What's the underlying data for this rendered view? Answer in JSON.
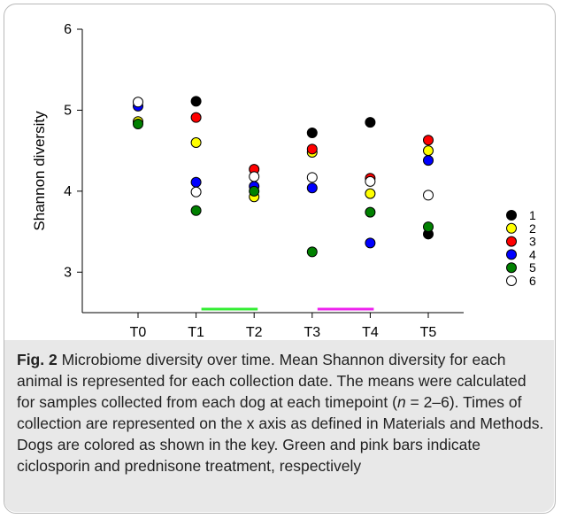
{
  "chart_data": {
    "type": "scatter",
    "ylabel": "Shannon diversity",
    "xlabel": "",
    "categories": [
      "T0",
      "T1",
      "T2",
      "T3",
      "T4",
      "T5"
    ],
    "ylim": [
      2.5,
      6
    ],
    "yticks": [
      3,
      4,
      5,
      6
    ],
    "grid": false,
    "legend_position": "right",
    "series": [
      {
        "name": "1",
        "color": "#000000",
        "values": [
          null,
          5.11,
          null,
          4.72,
          4.85,
          3.47
        ]
      },
      {
        "name": "2",
        "color": "#ffff00",
        "values": [
          4.86,
          4.6,
          3.93,
          4.48,
          3.97,
          4.5
        ]
      },
      {
        "name": "3",
        "color": "#ff0000",
        "values": [
          null,
          4.91,
          4.27,
          4.52,
          4.16,
          4.63
        ]
      },
      {
        "name": "4",
        "color": "#0000ff",
        "values": [
          5.05,
          4.11,
          4.06,
          4.04,
          3.36,
          4.38
        ]
      },
      {
        "name": "5",
        "color": "#008000",
        "values": [
          4.83,
          3.76,
          4.0,
          3.25,
          3.74,
          3.56
        ]
      },
      {
        "name": "6",
        "color": "#ffffff",
        "values": [
          5.1,
          3.99,
          4.18,
          4.17,
          4.12,
          3.95
        ]
      }
    ],
    "treatment_bars": [
      {
        "from": "T1",
        "to": "T2",
        "color": "#33ee33"
      },
      {
        "from": "T3",
        "to": "T4",
        "color": "#ee22ee"
      }
    ]
  },
  "caption": {
    "label": "Fig. 2",
    "pre": " Microbiome diversity over time. Mean Shannon diversity for each animal is represented for each collection date. The means were calculated for samples collected from each dog at each timepoint (",
    "n_var": "n",
    "post": " = 2–6). Times of collection are represented on the x axis as defined in Materials and Methods. Dogs are colored as shown in the key. Green and pink bars indicate ciclosporin and prednisone treatment, respectively"
  }
}
